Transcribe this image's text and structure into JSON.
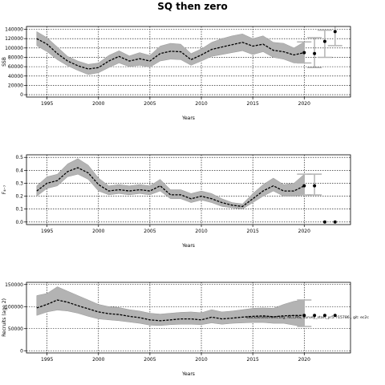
{
  "title": "SQ then zero",
  "colors": {
    "band": "#b3b3b3",
    "band_edge": "#9a9a9a",
    "median": "#000000",
    "proj_bar": "#b3b3b3",
    "grid": "#000000"
  },
  "chart_data": [
    {
      "type": "line",
      "name": "ssb",
      "ylabel": "SSB",
      "xlabel": "Years",
      "xlim": [
        1993,
        2024.5
      ],
      "ylim": [
        -5000,
        146000
      ],
      "xticks": [
        "1995",
        "2000",
        "2005",
        "2010",
        "2015",
        "2020"
      ],
      "yticks": [
        "0",
        "20000",
        "40000",
        "60000",
        "80000",
        "100000",
        "120000",
        "140000"
      ],
      "grid": true,
      "x": [
        1994,
        1995,
        1996,
        1997,
        1998,
        1999,
        2000,
        2001,
        2002,
        2003,
        2004,
        2005,
        2006,
        2007,
        2008,
        2009,
        2010,
        2011,
        2012,
        2013,
        2014,
        2015,
        2016,
        2017,
        2018,
        2019,
        2020
      ],
      "median": [
        120000,
        108000,
        88000,
        72000,
        62000,
        55000,
        58000,
        72000,
        82000,
        72000,
        77000,
        72000,
        88000,
        93000,
        92000,
        75000,
        85000,
        97000,
        102000,
        107000,
        112000,
        104000,
        108000,
        95000,
        92000,
        85000,
        90000
      ],
      "lower": [
        105000,
        92000,
        75000,
        62000,
        52000,
        43000,
        47000,
        58000,
        68000,
        60000,
        63000,
        59000,
        72000,
        76000,
        75000,
        63000,
        72000,
        82000,
        86000,
        90000,
        94000,
        86000,
        92000,
        80000,
        76000,
        68000,
        68000
      ],
      "upper": [
        135000,
        122000,
        102000,
        82000,
        72000,
        65000,
        68000,
        84000,
        94000,
        83000,
        90000,
        84000,
        104000,
        110000,
        108000,
        88000,
        98000,
        112000,
        120000,
        126000,
        130000,
        120000,
        126000,
        112000,
        110000,
        100000,
        113000
      ],
      "projection": {
        "x": [
          2020,
          2021,
          2022,
          2023
        ],
        "median": [
          90000,
          88000,
          114000,
          135000
        ],
        "lower": [
          68000,
          58000,
          80000,
          105000
        ],
        "upper": [
          113000,
          122000,
          138000,
          150000
        ]
      }
    },
    {
      "type": "line",
      "name": "f",
      "ylabel": "F₄₋₇",
      "xlabel": "Years",
      "xlim": [
        1993,
        2024.5
      ],
      "ylim": [
        -0.02,
        0.52
      ],
      "xticks": [
        "1995",
        "2000",
        "2005",
        "2010",
        "2015",
        "2020"
      ],
      "yticks": [
        "0.0",
        "0.1",
        "0.2",
        "0.3",
        "0.4",
        "0.5"
      ],
      "grid": true,
      "x": [
        1994,
        1995,
        1996,
        1997,
        1998,
        1999,
        2000,
        2001,
        2002,
        2003,
        2004,
        2005,
        2006,
        2007,
        2008,
        2009,
        2010,
        2011,
        2012,
        2013,
        2014,
        2015,
        2016,
        2017,
        2018,
        2019,
        2020
      ],
      "median": [
        0.24,
        0.3,
        0.32,
        0.39,
        0.42,
        0.38,
        0.29,
        0.24,
        0.25,
        0.24,
        0.25,
        0.24,
        0.28,
        0.21,
        0.21,
        0.18,
        0.2,
        0.18,
        0.15,
        0.13,
        0.12,
        0.18,
        0.24,
        0.28,
        0.24,
        0.24,
        0.28
      ],
      "lower": [
        0.2,
        0.26,
        0.28,
        0.35,
        0.37,
        0.33,
        0.24,
        0.21,
        0.22,
        0.21,
        0.22,
        0.21,
        0.24,
        0.18,
        0.18,
        0.15,
        0.17,
        0.15,
        0.12,
        0.11,
        0.1,
        0.15,
        0.2,
        0.24,
        0.2,
        0.2,
        0.21
      ],
      "upper": [
        0.28,
        0.35,
        0.37,
        0.45,
        0.49,
        0.44,
        0.34,
        0.28,
        0.29,
        0.28,
        0.29,
        0.28,
        0.33,
        0.25,
        0.25,
        0.22,
        0.24,
        0.22,
        0.18,
        0.15,
        0.14,
        0.22,
        0.29,
        0.34,
        0.29,
        0.3,
        0.37
      ],
      "projection": {
        "x": [
          2020,
          2021,
          2022,
          2023
        ],
        "median": [
          0.28,
          0.28,
          0.0,
          0.0
        ],
        "lower": [
          0.21,
          0.21,
          null,
          null
        ],
        "upper": [
          0.37,
          0.37,
          null,
          null
        ]
      }
    },
    {
      "type": "line",
      "name": "recruits",
      "ylabel": "Recruits (age 2)",
      "xlabel": "Years",
      "xlim": [
        1993,
        2024.5
      ],
      "ylim": [
        -5000,
        155000
      ],
      "xticks": [
        "1995",
        "2000",
        "2005",
        "2010",
        "2015",
        "2020"
      ],
      "yticks": [
        "0",
        "50000",
        "100000",
        "150000"
      ],
      "grid": true,
      "annotation": "stockassessment.org, NCCMS, survey_start_yr5: r15786 , git: ec2c",
      "x": [
        1994,
        1995,
        1996,
        1997,
        1998,
        1999,
        2000,
        2001,
        2002,
        2003,
        2004,
        2005,
        2006,
        2007,
        2008,
        2009,
        2010,
        2011,
        2012,
        2013,
        2014,
        2015,
        2016,
        2017,
        2018,
        2019,
        2020
      ],
      "median": [
        97000,
        105000,
        115000,
        110000,
        102000,
        95000,
        88000,
        84000,
        82000,
        78000,
        75000,
        70000,
        68000,
        70000,
        72000,
        72000,
        70000,
        76000,
        72000,
        74000,
        76000,
        78000,
        79000,
        77000,
        79000,
        80000,
        80000
      ],
      "lower": [
        80000,
        88000,
        92000,
        90000,
        85000,
        78000,
        72000,
        70000,
        68000,
        65000,
        62000,
        58000,
        57000,
        59000,
        60000,
        60000,
        59000,
        63000,
        60000,
        62000,
        63000,
        64000,
        64000,
        62000,
        62000,
        58000,
        55000
      ],
      "upper": [
        125000,
        130000,
        145000,
        135000,
        125000,
        115000,
        105000,
        100000,
        98000,
        93000,
        90000,
        85000,
        83000,
        85000,
        87000,
        88000,
        86000,
        93000,
        88000,
        90000,
        93000,
        96000,
        97000,
        96000,
        105000,
        112000,
        115000
      ],
      "projection": {
        "x": [
          2020,
          2021,
          2022,
          2023
        ],
        "median": [
          80000,
          80000,
          80000,
          80000
        ],
        "lower": [
          55000,
          null,
          null,
          null
        ],
        "upper": [
          115000,
          null,
          null,
          null
        ]
      }
    }
  ]
}
